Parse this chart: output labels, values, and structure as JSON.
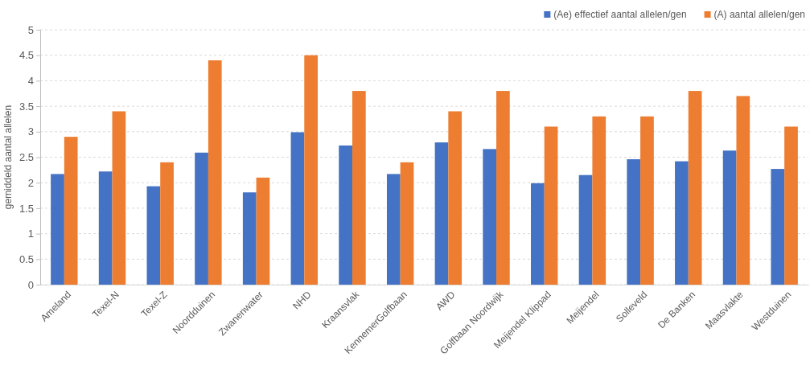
{
  "chart_data": {
    "type": "bar",
    "ylabel": "gemiddeld aantal allelen",
    "categories": [
      "Ameland",
      "Texel-N",
      "Texel-Z",
      "Noordduinen",
      "Zwanenwater",
      "NHD",
      "Kraansvlak",
      "KennemerGolfbaan",
      "AWD",
      "Golfbaan Noordwijk",
      "Meijendel Klippad",
      "Meijendel",
      "Solleveld",
      "De Banken",
      "Maasvlakte",
      "Westduinen"
    ],
    "series": [
      {
        "name": "(Ae) effectief aantal allelen/gen",
        "color": "#4472c4",
        "values": [
          2.17,
          2.22,
          1.93,
          2.59,
          1.81,
          2.99,
          2.73,
          2.17,
          2.79,
          2.66,
          1.99,
          2.15,
          2.46,
          2.42,
          2.63,
          2.27
        ]
      },
      {
        "name": "(A) aantal allelen/gen",
        "color": "#ed7d31",
        "values": [
          2.9,
          3.4,
          2.4,
          4.4,
          2.1,
          4.5,
          3.8,
          2.4,
          3.4,
          3.8,
          3.1,
          3.3,
          3.3,
          3.8,
          3.7,
          3.1
        ]
      }
    ],
    "ylim": [
      0,
      5
    ],
    "yticks": [
      0,
      0.5,
      1,
      1.5,
      2,
      2.5,
      3,
      3.5,
      4,
      4.5,
      5
    ],
    "grid": "y",
    "legend": "top right"
  }
}
